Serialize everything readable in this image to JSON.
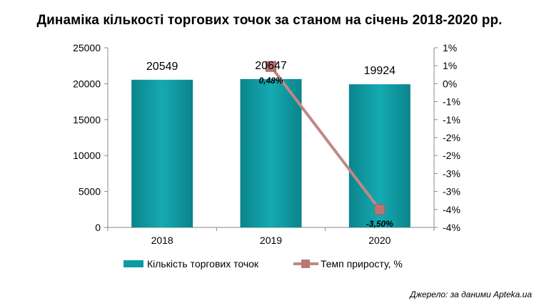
{
  "title": "Динаміка кількості торгових точок за станом на січень 2018-2020 рр.",
  "source": "Джерело: за даними Apteka.ua",
  "chart_data": {
    "type": "bar",
    "categories": [
      "2018",
      "2019",
      "2020"
    ],
    "series": [
      {
        "name": "Кількість торгових точок",
        "type": "bar",
        "axis": "left",
        "values": [
          20549,
          20647,
          19924
        ],
        "labels": [
          "20549",
          "20647",
          "19924"
        ],
        "color": "#0f9aa3"
      },
      {
        "name": "Темп приросту, %",
        "type": "line",
        "axis": "right",
        "values": [
          null,
          0.48,
          -3.5
        ],
        "labels": [
          "",
          "0,48%",
          "-3,50%"
        ],
        "color": "#c08884",
        "marker_color": "#b87772"
      }
    ],
    "y_left": {
      "min": 0,
      "max": 25000,
      "ticks": [
        "0",
        "5000",
        "10000",
        "15000",
        "20000",
        "25000"
      ]
    },
    "y_right": {
      "min": -4,
      "max": 1,
      "ticks": [
        "-4%",
        "-4%",
        "-3%",
        "-3%",
        "-2%",
        "-2%",
        "-1%",
        "-1%",
        "0%",
        "1%",
        "1%"
      ]
    },
    "legend_position": "bottom"
  }
}
